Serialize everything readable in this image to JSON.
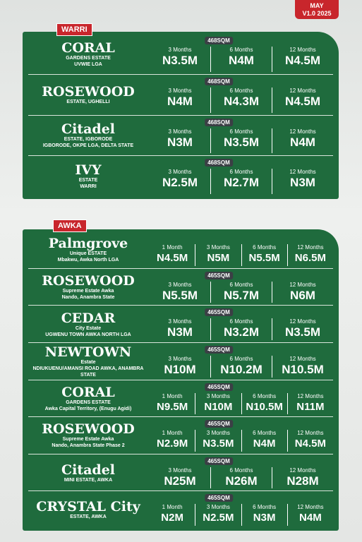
{
  "header": {
    "badge": [
      "MAY",
      "V1.0 2025"
    ]
  },
  "sections": [
    {
      "title": "WARRI",
      "rows": [
        {
          "logo": [
            "CORAL",
            "GARDENS ESTATE",
            "UVWIE LGA"
          ],
          "size": "468SQM",
          "prices": [
            {
              "period": "3 Months",
              "price": "N3.5M"
            },
            {
              "period": "6 Months",
              "price": "N4M"
            },
            {
              "period": "12 Months",
              "price": "N4.5M"
            }
          ]
        },
        {
          "logo": [
            "ROSEWOOD",
            "ESTATE, UGHELLI"
          ],
          "size": "468SQM",
          "prices": [
            {
              "period": "3 Months",
              "price": "N4M"
            },
            {
              "period": "6 Months",
              "price": "N4.3M"
            },
            {
              "period": "12 Months",
              "price": "N4.5M"
            }
          ]
        },
        {
          "logo": [
            "Citadel",
            "ESTATE, IGBORODE",
            "IGBORODE, OKPE LGA, DELTA STATE"
          ],
          "size": "468SQM",
          "prices": [
            {
              "period": "3 Months",
              "price": "N3M"
            },
            {
              "period": "6 Months",
              "price": "N3.5M"
            },
            {
              "period": "12 Months",
              "price": "N4M"
            }
          ]
        },
        {
          "logo": [
            "IVY",
            "ESTATE",
            "WARRI"
          ],
          "size": "468SQM",
          "prices": [
            {
              "period": "3 Months",
              "price": "N2.5M"
            },
            {
              "period": "6 Months",
              "price": "N2.7M"
            },
            {
              "period": "12 Months",
              "price": "N3M"
            }
          ]
        }
      ]
    },
    {
      "title": "AWKA",
      "rows": [
        {
          "logo": [
            "Palmgrove",
            "Unique ESTATE",
            "Mbakwu, Awka North LGA"
          ],
          "prices": [
            {
              "period": "1 Month",
              "price": "N4.5M"
            },
            {
              "period": "3 Months",
              "price": "N5M"
            },
            {
              "period": "6 Months",
              "price": "N5.5M"
            },
            {
              "period": "12 Months",
              "price": "N6.5M"
            }
          ]
        },
        {
          "logo": [
            "ROSEWOOD",
            "Supreme Estate Awka",
            "Nando, Anambra State"
          ],
          "size": "465SQM",
          "prices": [
            {
              "period": "3 Months",
              "price": "N5.5M"
            },
            {
              "period": "6 Months",
              "price": "N5.7M"
            },
            {
              "period": "12 Months",
              "price": "N6M"
            }
          ]
        },
        {
          "logo": [
            "CEDAR",
            "City Estate",
            "UGWENU TOWN AWKA NORTH LGA"
          ],
          "size": "465SQM",
          "prices": [
            {
              "period": "3 Months",
              "price": "N3M"
            },
            {
              "period": "6 Months",
              "price": "N3.2M"
            },
            {
              "period": "12 Months",
              "price": "N3.5M"
            }
          ]
        },
        {
          "logo": [
            "NEWTOWN",
            "Estate",
            "NDIUKUENU/AMANSI ROAD AWKA, ANAMBRA STATE"
          ],
          "size": "465SQM",
          "prices": [
            {
              "period": "3 Months",
              "price": "N10M"
            },
            {
              "period": "6 Months",
              "price": "N10.2M"
            },
            {
              "period": "12 Months",
              "price": "N10.5M"
            }
          ]
        },
        {
          "logo": [
            "CORAL",
            "GARDENS ESTATE",
            "Awka Capital Territory, (Enugu Agidi)"
          ],
          "size": "465SQM",
          "prices": [
            {
              "period": "1 Month",
              "price": "N9.5M"
            },
            {
              "period": "3 Months",
              "price": "N10M"
            },
            {
              "period": "6 Months",
              "price": "N10.5M"
            },
            {
              "period": "12 Months",
              "price": "N11M"
            }
          ]
        },
        {
          "logo": [
            "ROSEWOOD",
            "Supreme Estate Awka",
            "Nando, Anambra State Phase 2"
          ],
          "size": "465SQM",
          "prices": [
            {
              "period": "1 Month",
              "price": "N2.9M"
            },
            {
              "period": "3 Months",
              "price": "N3.5M"
            },
            {
              "period": "6 Months",
              "price": "N4M"
            },
            {
              "period": "12 Months",
              "price": "N4.5M"
            }
          ]
        },
        {
          "logo": [
            "Citadel",
            "MINI ESTATE, AWKA"
          ],
          "size": "465SQM",
          "prices": [
            {
              "period": "3 Months",
              "price": "N25M"
            },
            {
              "period": "6 Months",
              "price": "N26M"
            },
            {
              "period": "12 Months",
              "price": "N28M"
            }
          ]
        },
        {
          "logo": [
            "CRYSTAL City",
            "ESTATE, AWKA"
          ],
          "size": "465SQM",
          "prices": [
            {
              "period": "1 Month",
              "price": "N2M"
            },
            {
              "period": "3 Months",
              "price": "N2.5M"
            },
            {
              "period": "6 Months",
              "price": "N3M"
            },
            {
              "period": "12 Months",
              "price": "N4M"
            }
          ]
        }
      ]
    }
  ]
}
